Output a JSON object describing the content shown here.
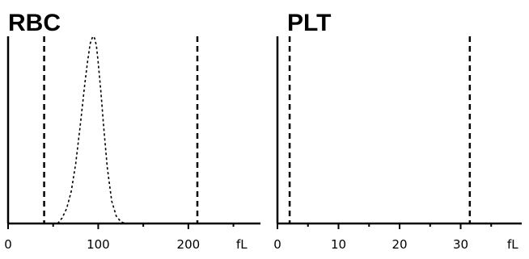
{
  "chart_data": [
    {
      "type": "line",
      "title": "RBC",
      "unit_label": "fL",
      "xlim": [
        0,
        280
      ],
      "ylim": [
        0,
        1
      ],
      "x_ticks": [
        "0",
        "100",
        "200"
      ],
      "x_tick_values": [
        0,
        100,
        200
      ],
      "minor_tick_values": [
        50,
        150,
        250
      ],
      "discriminators": [
        40,
        210
      ],
      "series": [
        {
          "name": "",
          "x": [
            55,
            60,
            65,
            70,
            75,
            80,
            85,
            88,
            91,
            94,
            96,
            98,
            100,
            103,
            106,
            110,
            115,
            120,
            125,
            130
          ],
          "values": [
            0.0,
            0.03,
            0.08,
            0.17,
            0.32,
            0.52,
            0.74,
            0.86,
            0.96,
            1.0,
            0.99,
            0.95,
            0.86,
            0.7,
            0.52,
            0.3,
            0.12,
            0.04,
            0.01,
            0.0
          ]
        }
      ]
    },
    {
      "type": "line",
      "title": "PLT",
      "unit_label": "fL",
      "xlim": [
        0,
        40
      ],
      "ylim": [
        0,
        1
      ],
      "x_ticks": [
        "0",
        "10",
        "20",
        "30"
      ],
      "x_tick_values": [
        0,
        10,
        20,
        30
      ],
      "minor_tick_values": [
        5,
        15,
        25,
        35
      ],
      "discriminators": [
        2,
        31.5
      ],
      "series": [
        {
          "name": "",
          "x": [],
          "values": []
        }
      ]
    }
  ]
}
